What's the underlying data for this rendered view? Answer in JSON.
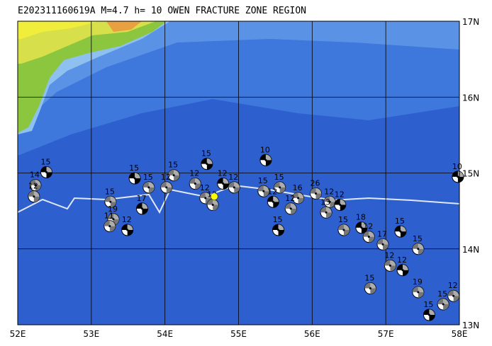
{
  "title": "E202311160619A  M=4.7  h= 10 OWEN FRACTURE ZONE REGION",
  "map": {
    "xlim": [
      52,
      58
    ],
    "ylim": [
      13,
      17
    ],
    "xticks": [
      {
        "value": 52,
        "label": "52E"
      },
      {
        "value": 53,
        "label": "53E"
      },
      {
        "value": 54,
        "label": "54E"
      },
      {
        "value": 55,
        "label": "55E"
      },
      {
        "value": 56,
        "label": "56E"
      },
      {
        "value": 57,
        "label": "57E"
      },
      {
        "value": 58,
        "label": "58E"
      }
    ],
    "yticks": [
      {
        "value": 13,
        "label": "13N"
      },
      {
        "value": 14,
        "label": "14N"
      },
      {
        "value": 15,
        "label": "15N"
      },
      {
        "value": 16,
        "label": "16N"
      },
      {
        "value": 17,
        "label": "17N"
      }
    ],
    "grid": true,
    "epicenter": {
      "lon": 54.67,
      "lat": 14.69,
      "color": "#ffff00"
    },
    "events": [
      {
        "lon": 52.39,
        "lat": 15.01,
        "depth": 15
      },
      {
        "lon": 52.24,
        "lat": 14.84,
        "depth": 14
      },
      {
        "lon": 52.22,
        "lat": 14.69,
        "depth": 12
      },
      {
        "lon": 53.59,
        "lat": 14.93,
        "depth": 15
      },
      {
        "lon": 53.78,
        "lat": 14.81,
        "depth": 15
      },
      {
        "lon": 53.26,
        "lat": 14.62,
        "depth": 15
      },
      {
        "lon": 53.69,
        "lat": 14.53,
        "depth": 17
      },
      {
        "lon": 53.3,
        "lat": 14.39,
        "depth": 19
      },
      {
        "lon": 53.25,
        "lat": 14.3,
        "depth": 11
      },
      {
        "lon": 53.49,
        "lat": 14.25,
        "depth": 12
      },
      {
        "lon": 54.12,
        "lat": 14.97,
        "depth": 15
      },
      {
        "lon": 54.02,
        "lat": 14.81,
        "depth": 12
      },
      {
        "lon": 54.57,
        "lat": 15.12,
        "depth": 15
      },
      {
        "lon": 54.41,
        "lat": 14.86,
        "depth": 12
      },
      {
        "lon": 54.55,
        "lat": 14.67,
        "depth": 12
      },
      {
        "lon": 54.79,
        "lat": 14.86,
        "depth": 12
      },
      {
        "lon": 54.94,
        "lat": 14.81,
        "depth": 12
      },
      {
        "lon": 54.65,
        "lat": 14.58,
        "depth": 12
      },
      {
        "lon": 55.37,
        "lat": 15.17,
        "depth": 10
      },
      {
        "lon": 55.34,
        "lat": 14.76,
        "depth": 15
      },
      {
        "lon": 55.56,
        "lat": 14.81,
        "depth": 15
      },
      {
        "lon": 55.47,
        "lat": 14.62,
        "depth": 12
      },
      {
        "lon": 55.81,
        "lat": 14.67,
        "depth": 16
      },
      {
        "lon": 55.71,
        "lat": 14.53,
        "depth": 12
      },
      {
        "lon": 55.54,
        "lat": 14.25,
        "depth": 15
      },
      {
        "lon": 56.05,
        "lat": 14.73,
        "depth": 26
      },
      {
        "lon": 56.24,
        "lat": 14.62,
        "depth": 12
      },
      {
        "lon": 56.38,
        "lat": 14.58,
        "depth": 12
      },
      {
        "lon": 56.19,
        "lat": 14.48,
        "depth": 13
      },
      {
        "lon": 56.43,
        "lat": 14.25,
        "depth": 15
      },
      {
        "lon": 56.67,
        "lat": 14.28,
        "depth": 18
      },
      {
        "lon": 56.77,
        "lat": 14.16,
        "depth": 12
      },
      {
        "lon": 56.96,
        "lat": 14.06,
        "depth": 17
      },
      {
        "lon": 57.2,
        "lat": 14.23,
        "depth": 15
      },
      {
        "lon": 57.44,
        "lat": 14.0,
        "depth": 15
      },
      {
        "lon": 57.06,
        "lat": 13.78,
        "depth": 12
      },
      {
        "lon": 57.23,
        "lat": 13.72,
        "depth": 12
      },
      {
        "lon": 56.79,
        "lat": 13.48,
        "depth": 15
      },
      {
        "lon": 57.44,
        "lat": 13.43,
        "depth": 19
      },
      {
        "lon": 57.59,
        "lat": 13.13,
        "depth": 15
      },
      {
        "lon": 57.78,
        "lat": 13.27,
        "depth": 15
      },
      {
        "lon": 57.92,
        "lat": 13.38,
        "depth": 12
      },
      {
        "lon": 57.98,
        "lat": 14.95,
        "depth": 10
      }
    ]
  }
}
